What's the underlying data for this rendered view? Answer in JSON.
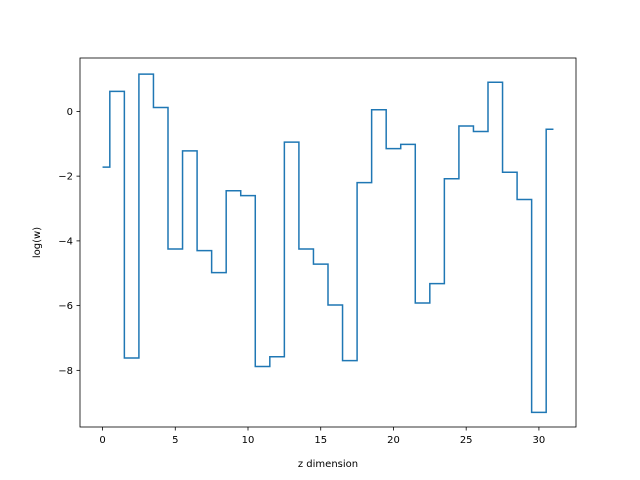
{
  "chart_data": {
    "type": "line",
    "drawstyle": "steps-mid",
    "title": "",
    "xlabel": "z dimension",
    "ylabel": "log(w)",
    "xlim": [
      -1.55,
      32.55
    ],
    "ylim": [
      -9.75,
      1.65
    ],
    "xticks": [
      0,
      5,
      10,
      15,
      20,
      25,
      30
    ],
    "yticks": [
      -8,
      -6,
      -4,
      -2,
      0
    ],
    "grid": false,
    "color": "#1f77b4",
    "series": [
      {
        "x": [
          0,
          1,
          2,
          3,
          4,
          5,
          6,
          7,
          8,
          9,
          10,
          11,
          12,
          13,
          14,
          15,
          16,
          17,
          18,
          19,
          20,
          21,
          22,
          23,
          24,
          25,
          26,
          27,
          28,
          29,
          30,
          31
        ],
        "values": [
          -1.72,
          0.62,
          -7.62,
          1.15,
          0.12,
          -4.25,
          -1.22,
          -4.3,
          -4.98,
          -2.45,
          -2.6,
          -7.88,
          -7.58,
          -0.95,
          -4.25,
          -4.72,
          -5.98,
          -7.7,
          -2.2,
          0.05,
          -1.15,
          -1.02,
          -5.92,
          -5.32,
          -2.08,
          -0.45,
          -0.62,
          0.9,
          -1.88,
          -2.72,
          -9.3,
          -0.55
        ]
      }
    ]
  }
}
